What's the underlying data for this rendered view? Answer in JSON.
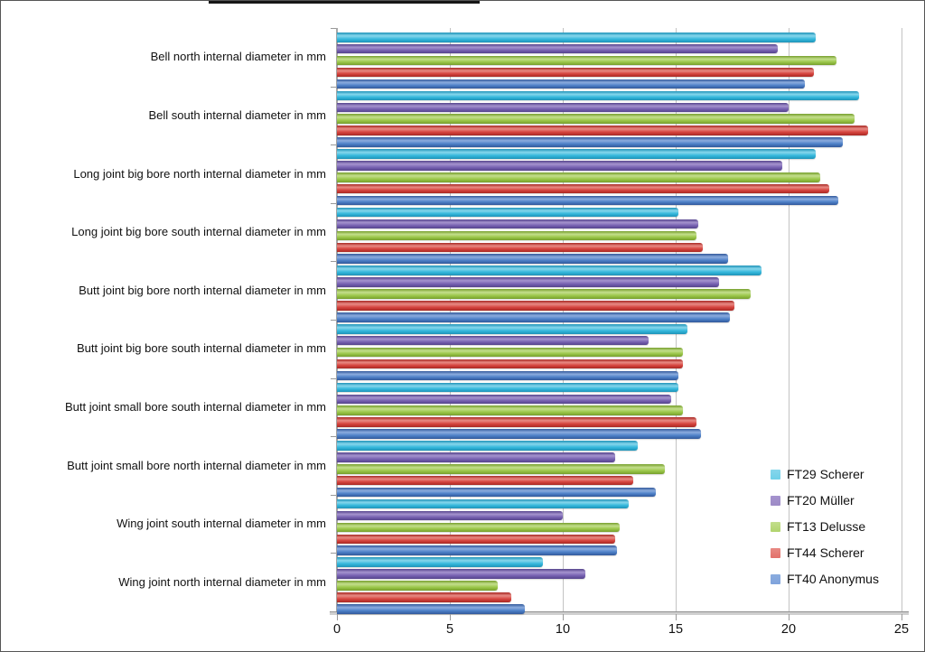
{
  "chart_data": {
    "type": "bar",
    "orientation": "horizontal",
    "title": "",
    "xlabel": "",
    "ylabel": "",
    "grid": "vertical",
    "legend_position": "right-lower",
    "xlim": [
      0,
      25
    ],
    "x_ticks": [
      0,
      5,
      10,
      15,
      20,
      25
    ],
    "x_tick_labels": [
      "0",
      "5",
      "10",
      "15",
      "20",
      "25"
    ],
    "categories": [
      "Bell north internal diameter in mm",
      "Bell south internal diameter in mm",
      "Long  joint big bore north internal diameter in mm",
      "Long joint big bore south internal diameter in mm",
      "Butt joint big bore north internal diameter in mm",
      "Butt joint big bore south internal diameter in mm",
      "Butt joint small bore south internal diameter in mm",
      "Butt joint small bore north internal diameter in mm",
      "Wing joint south internal diameter in mm",
      "Wing joint north internal diameter in mm"
    ],
    "series": [
      {
        "name": "FT29 Scherer",
        "color": "#35B8DC",
        "light": "#86D6EC",
        "dark": "#1E93B8",
        "swatch": "#6FD0E8",
        "values": [
          21.2,
          23.1,
          21.2,
          15.1,
          18.8,
          15.5,
          15.1,
          13.3,
          12.9,
          9.1
        ]
      },
      {
        "name": "FT20 Müller",
        "color": "#7863B2",
        "light": "#A593CE",
        "dark": "#55438C",
        "swatch": "#9D8BC6",
        "values": [
          19.5,
          20.0,
          19.7,
          16.0,
          16.9,
          13.8,
          14.8,
          12.3,
          10.0,
          11.0
        ]
      },
      {
        "name": "FT13 Delusse",
        "color": "#9CC84B",
        "light": "#C3DE8C",
        "dark": "#769F2C",
        "swatch": "#B1D46E",
        "values": [
          22.1,
          22.9,
          21.4,
          15.9,
          18.3,
          15.3,
          15.3,
          14.5,
          12.5,
          7.1
        ]
      },
      {
        "name": "FT44 Scherer",
        "color": "#D6453F",
        "light": "#E88A84",
        "dark": "#A92823",
        "swatch": "#E2706A",
        "values": [
          21.1,
          23.5,
          21.8,
          16.2,
          17.6,
          15.3,
          15.9,
          13.1,
          12.3,
          7.7
        ]
      },
      {
        "name": "FT40 Anonymus",
        "color": "#4E81C8",
        "light": "#8BACDE",
        "dark": "#31589B",
        "swatch": "#7FA3DC",
        "values": [
          20.7,
          22.4,
          22.2,
          17.3,
          17.4,
          15.1,
          16.1,
          14.1,
          12.4,
          8.3
        ]
      }
    ],
    "style_colors": {
      "gridline": "#c3c3c3",
      "axis": "#9a9a9a",
      "text": "#111111",
      "frame": "#555555",
      "background": "#ffffff"
    }
  }
}
